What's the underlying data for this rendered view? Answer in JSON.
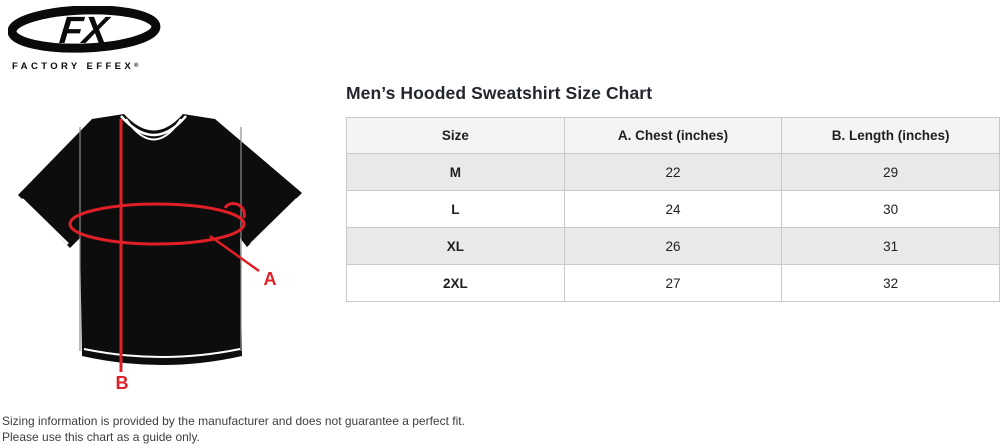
{
  "logo": {
    "brand": "FX",
    "tagline": "FACTORY EFFEX",
    "registered_mark": "®"
  },
  "diagram": {
    "label_a": "A",
    "label_b": "B"
  },
  "size_chart": {
    "title": "Men’s Hooded Sweatshirt Size Chart",
    "columns": [
      "Size",
      "A. Chest (inches)",
      "B. Length (inches)"
    ],
    "rows": [
      [
        "M",
        "22",
        "29"
      ],
      [
        "L",
        "24",
        "30"
      ],
      [
        "XL",
        "26",
        "31"
      ],
      [
        "2XL",
        "27",
        "32"
      ]
    ]
  },
  "chart_data": {
    "type": "table",
    "title": "Men’s Hooded Sweatshirt Size Chart",
    "columns": [
      "Size",
      "A. Chest (inches)",
      "B. Length (inches)"
    ],
    "rows": [
      [
        "M",
        22,
        29
      ],
      [
        "L",
        24,
        30
      ],
      [
        "XL",
        26,
        31
      ],
      [
        "2XL",
        27,
        32
      ]
    ]
  },
  "footer": {
    "line1": "Sizing information is provided by the manufacturer and does not guarantee a perfect fit.",
    "line2": "Please use this chart as a guide only."
  },
  "colors": {
    "accent_red": "#e01f26",
    "table_header_bg": "#f4f4f4",
    "table_alt_row_bg": "#e9e9e9",
    "table_border": "#c9c9c9"
  }
}
